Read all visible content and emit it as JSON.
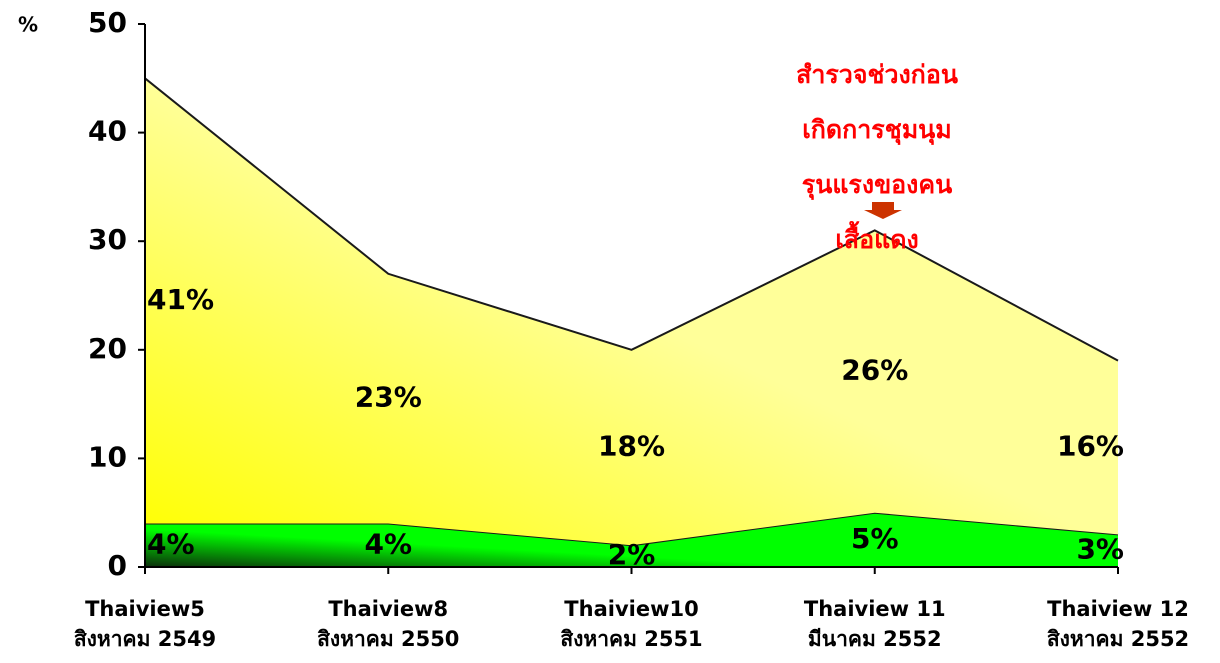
{
  "chart_data": {
    "type": "area",
    "y_label": "%",
    "categories": [
      [
        "Thaiview5",
        "สิงหาคม 2549"
      ],
      [
        "Thaiview8",
        "สิงหาคม 2550"
      ],
      [
        "Thaiview10",
        "สิงหาคม 2551"
      ],
      [
        "Thaiview 11",
        "มีนาคม 2552"
      ],
      [
        "Thaiview 12",
        "สิงหาคม 2552"
      ]
    ],
    "series": [
      {
        "color": "#00ff00",
        "values": [
          4,
          4,
          2,
          5,
          3
        ],
        "value_labels": [
          "4%",
          "4%",
          "2%",
          "5%",
          "3%"
        ]
      },
      {
        "color": "#ffff99",
        "values": [
          41,
          23,
          18,
          26,
          16
        ],
        "value_labels": [
          "41%",
          "23%",
          "18%",
          "26%",
          "16%"
        ]
      }
    ],
    "ylim": [
      0,
      50
    ],
    "yticks": [
      0,
      10,
      20,
      30,
      40,
      50
    ],
    "annotation": [
      "สำรวจช่วงก่อน",
      "เกิดการชุมนุม",
      "รุนแรงของคน",
      "เสื้อแดง"
    ]
  }
}
